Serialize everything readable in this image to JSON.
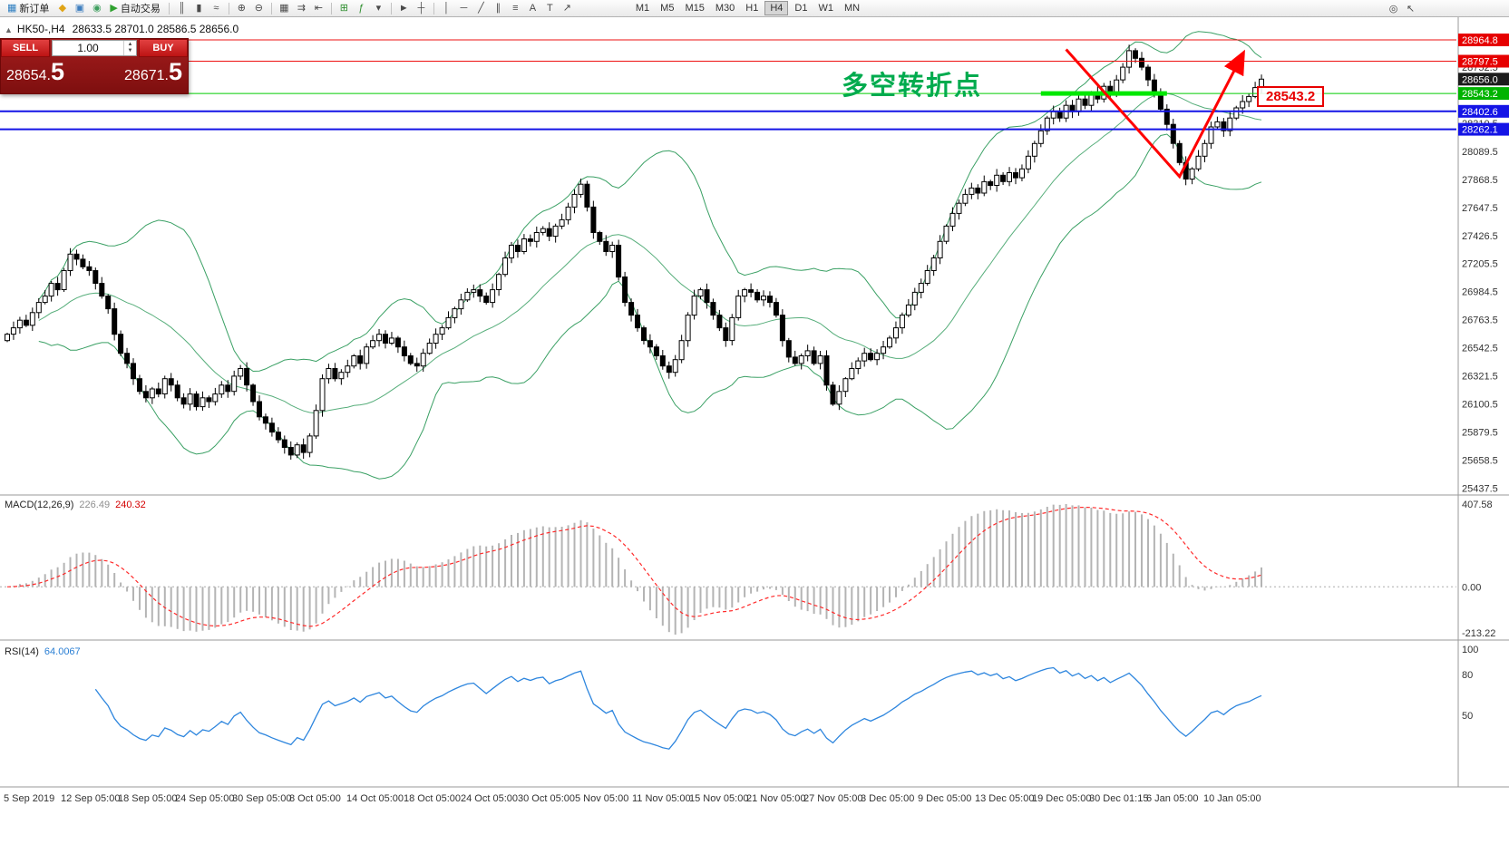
{
  "toolbar": {
    "items": [
      {
        "type": "button",
        "name": "new-order-button",
        "glyph": "▦",
        "color": "#2f7fc1",
        "label": "新订单"
      },
      {
        "type": "icon",
        "name": "mql-community-icon",
        "glyph": "◆",
        "color": "#e0a416"
      },
      {
        "type": "icon",
        "name": "market-icon",
        "glyph": "▣",
        "color": "#3f7fbf"
      },
      {
        "type": "icon",
        "name": "signals-icon",
        "glyph": "◉",
        "color": "#3f9f5f"
      },
      {
        "type": "button",
        "name": "autotrading-button",
        "glyph": "▶",
        "color": "#2fa12f",
        "label": "自动交易"
      },
      {
        "type": "sep"
      },
      {
        "type": "icon",
        "name": "bar-chart-mode-icon",
        "glyph": "║"
      },
      {
        "type": "icon",
        "name": "candlestick-mode-icon",
        "glyph": "▮"
      },
      {
        "type": "icon",
        "name": "line-chart-mode-icon",
        "glyph": "≈"
      },
      {
        "type": "sep"
      },
      {
        "type": "icon",
        "name": "zoom-in-icon",
        "glyph": "⊕"
      },
      {
        "type": "icon",
        "name": "zoom-out-icon",
        "glyph": "⊖"
      },
      {
        "type": "sep"
      },
      {
        "type": "icon",
        "name": "tile-windows-icon",
        "glyph": "▦"
      },
      {
        "type": "icon",
        "name": "auto-scroll-icon",
        "glyph": "⇉"
      },
      {
        "type": "icon",
        "name": "chart-shift-icon",
        "glyph": "⇤"
      },
      {
        "type": "sep"
      },
      {
        "type": "icon",
        "name": "new-chart-icon",
        "glyph": "⊞",
        "color": "#2f8f2f"
      },
      {
        "type": "icon",
        "name": "indicators-icon",
        "glyph": "ƒ",
        "color": "#2f8f2f"
      },
      {
        "type": "icon",
        "name": "indicators-list-icon",
        "glyph": "▾"
      },
      {
        "type": "sep"
      },
      {
        "type": "icon",
        "name": "cursor-icon",
        "glyph": "►"
      },
      {
        "type": "icon",
        "name": "crosshair-icon",
        "glyph": "┼"
      },
      {
        "type": "sep"
      },
      {
        "type": "icon",
        "name": "vertical-line-icon",
        "glyph": "│"
      },
      {
        "type": "icon",
        "name": "horizontal-line-icon",
        "glyph": "─"
      },
      {
        "type": "icon",
        "name": "trendline-icon",
        "glyph": "╱"
      },
      {
        "type": "icon",
        "name": "channel-icon",
        "glyph": "∥"
      },
      {
        "type": "icon",
        "name": "fibonacci-icon",
        "glyph": "≡"
      },
      {
        "type": "icon",
        "name": "text-icon",
        "glyph": "A"
      },
      {
        "type": "icon",
        "name": "text-label-icon",
        "glyph": "T"
      },
      {
        "type": "icon",
        "name": "arrows-icon",
        "glyph": "↗"
      }
    ],
    "timeframes": [
      "M1",
      "M5",
      "M15",
      "M30",
      "H1",
      "H4",
      "D1",
      "W1",
      "MN"
    ],
    "active_timeframe": "H4",
    "right_icons": [
      {
        "name": "search-icon",
        "glyph": "◎"
      },
      {
        "name": "select-pointer-icon",
        "glyph": "↖"
      }
    ]
  },
  "chart_header": {
    "collapse_icon": "▲",
    "symbol": "HK50-,H4",
    "ohlc": "28633.5 28701.0 28586.5 28656.0"
  },
  "order_panel": {
    "sell_label": "SELL",
    "buy_label": "BUY",
    "volume": "1.00",
    "sell_price_main": "28654.",
    "sell_price_big": "5",
    "buy_price_main": "28671.",
    "buy_price_big": "5"
  },
  "annotation": {
    "text": "多空转折点",
    "color": "#00ab4e"
  },
  "price_tag": {
    "text": "28543.2",
    "color": "#e80000"
  },
  "indicators": {
    "macd": {
      "label": "MACD(12,26,9)",
      "value_main": "226.49",
      "value_signal": "240.32",
      "scale": [
        "407.58",
        "0.00",
        "-213.22"
      ]
    },
    "rsi": {
      "label": "RSI(14)",
      "value": "64.0067",
      "scale": [
        "100",
        "80",
        "50"
      ]
    }
  },
  "price_scale": {
    "plain": [
      28752.5,
      28310.5,
      28089.5,
      27868.5,
      27647.5,
      27426.5,
      27205.5,
      26984.5,
      26763.5,
      26542.5,
      26321.5,
      26100.5,
      25879.5,
      25658.5,
      25437.5
    ],
    "boxed": [
      {
        "price": 28964.8,
        "text": "28964.8",
        "bg": "#e60000"
      },
      {
        "price": 28797.5,
        "text": "28797.5",
        "bg": "#e60000"
      },
      {
        "price": 28656.0,
        "text": "28656.0",
        "bg": "#1c1c1c"
      },
      {
        "price": 28543.2,
        "text": "28543.2",
        "bg": "#00b300"
      },
      {
        "price": 28402.6,
        "text": "28402.6",
        "bg": "#1414e6"
      },
      {
        "price": 28262.1,
        "text": "28262.1",
        "bg": "#1414e6"
      }
    ]
  },
  "time_axis": [
    "5 Sep 2019",
    "12 Sep 05:00",
    "18 Sep 05:00",
    "24 Sep 05:00",
    "30 Sep 05:00",
    "8 Oct 05:00",
    "14 Oct 05:00",
    "18 Oct 05:00",
    "24 Oct 05:00",
    "30 Oct 05:00",
    "5 Nov 05:00",
    "11 Nov 05:00",
    "15 Nov 05:00",
    "21 Nov 05:00",
    "27 Nov 05:00",
    "3 Dec 05:00",
    "9 Dec 05:00",
    "13 Dec 05:00",
    "19 Dec 05:00",
    "30 Dec 01:15",
    "6 Jan 05:00",
    "10 Jan 05:00"
  ],
  "chart_data": {
    "type": "candlestick",
    "title": "HK50-,H4",
    "symbol": "HK50-",
    "timeframe": "H4",
    "current_ohlc": {
      "open": 28633.5,
      "high": 28701.0,
      "low": 28586.5,
      "close": 28656.0
    },
    "y_axis": {
      "min": 25437.5,
      "max": 28964.8
    },
    "open_rule": "previous_close",
    "first_open": 26600,
    "closes": [
      26650,
      26700,
      26760,
      26720,
      26820,
      26900,
      26950,
      27050,
      27000,
      27150,
      27280,
      27240,
      27180,
      27150,
      27050,
      26950,
      26850,
      26650,
      26500,
      26420,
      26300,
      26200,
      26150,
      26220,
      26180,
      26300,
      26250,
      26150,
      26100,
      26180,
      26080,
      26150,
      26120,
      26180,
      26250,
      26200,
      26320,
      26380,
      26250,
      26120,
      26000,
      25950,
      25880,
      25820,
      25760,
      25700,
      25780,
      25720,
      25850,
      26050,
      26300,
      26380,
      26300,
      26350,
      26400,
      26480,
      26420,
      26550,
      26600,
      26650,
      26580,
      26620,
      26550,
      26480,
      26420,
      26400,
      26500,
      26580,
      26650,
      26700,
      26780,
      26850,
      26920,
      26980,
      27000,
      26950,
      26900,
      27000,
      27120,
      27250,
      27350,
      27300,
      27400,
      27380,
      27450,
      27480,
      27420,
      27500,
      27550,
      27650,
      27750,
      27830,
      27650,
      27450,
      27380,
      27300,
      27350,
      27100,
      26900,
      26800,
      26700,
      26600,
      26550,
      26480,
      26400,
      26350,
      26450,
      26600,
      26800,
      26950,
      27000,
      26900,
      26800,
      26700,
      26600,
      26780,
      26950,
      27000,
      26980,
      26920,
      26950,
      26900,
      26800,
      26600,
      26470,
      26420,
      26480,
      26520,
      26420,
      26480,
      26250,
      26100,
      26200,
      26300,
      26380,
      26440,
      26500,
      26450,
      26500,
      26550,
      26620,
      26700,
      26800,
      26880,
      26980,
      27050,
      27150,
      27250,
      27380,
      27500,
      27600,
      27680,
      27750,
      27800,
      27760,
      27850,
      27820,
      27900,
      27850,
      27920,
      27880,
      27950,
      28050,
      28150,
      28250,
      28350,
      28400,
      28350,
      28450,
      28400,
      28500,
      28450,
      28550,
      28500,
      28600,
      28550,
      28650,
      28750,
      28880,
      28820,
      28750,
      28650,
      28550,
      28420,
      28300,
      28150,
      28000,
      27870,
      27950,
      28050,
      28150,
      28280,
      28320,
      28250,
      28350,
      28430,
      28480,
      28520,
      28590,
      28656
    ],
    "indicator_settings": {
      "bollinger": {
        "period": 20,
        "deviation": 2
      },
      "macd": {
        "fast": 12,
        "slow": 26,
        "signal": 9,
        "last_main": 226.49,
        "last_signal": 240.32
      },
      "rsi": {
        "period": 14,
        "last": 64.0067
      }
    },
    "levels": [
      {
        "price": 28964.8,
        "color": "#ee1111",
        "width": 1
      },
      {
        "price": 28797.5,
        "color": "#ee1111",
        "width": 1
      },
      {
        "price": 28543.2,
        "color": "#00cc00",
        "width": 1
      },
      {
        "price": 28402.6,
        "color": "#1414e6",
        "width": 2
      },
      {
        "price": 28262.1,
        "color": "#1414e6",
        "width": 2
      }
    ],
    "green_zone": {
      "price": 28543.2,
      "from_index": 164,
      "to_index": 184
    },
    "arrow_drawing": {
      "color": "#ff0000",
      "points": [
        [
          168,
          28890
        ],
        [
          186,
          27890
        ],
        [
          196,
          28850
        ]
      ]
    }
  }
}
